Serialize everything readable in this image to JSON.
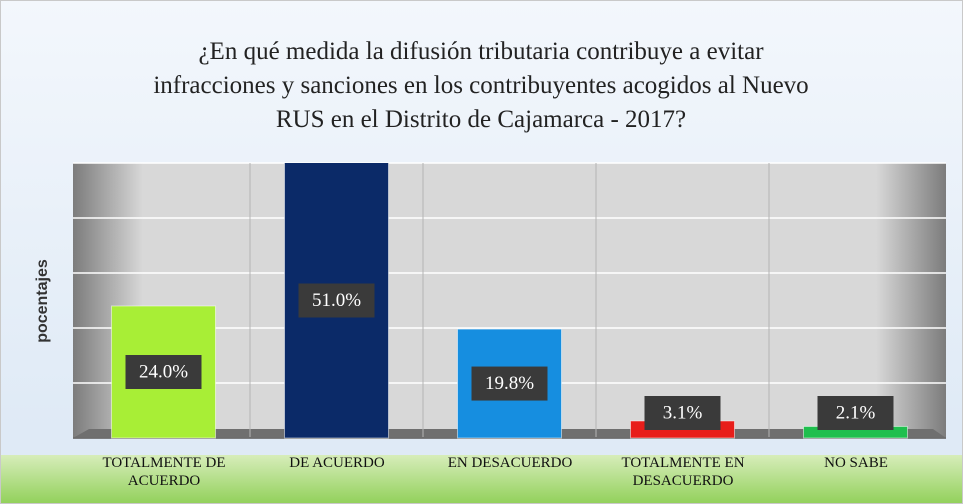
{
  "chart_data": {
    "type": "bar",
    "title": "¿En qué medida la difusión tributaria contribuye a evitar infracciones y sanciones en los contribuyentes acogidos al Nuevo RUS en el Distrito de Cajamarca - 2017?",
    "ylabel": "pocentajes",
    "categories": [
      "TOTALMENTE DE ACUERDO",
      "DE ACUERDO",
      "EN DESACUERDO",
      "TOTALMENTE EN DESACUERDO",
      "NO SABE"
    ],
    "values": [
      24.0,
      51.0,
      19.8,
      3.1,
      2.1
    ],
    "value_labels": [
      "24.0%",
      "51.0%",
      "19.8%",
      "3.1%",
      "2.1%"
    ],
    "colors": [
      "#a8ee36",
      "#0b2a68",
      "#168ee0",
      "#e81e1a",
      "#1fbf4e"
    ],
    "ylim": [
      0,
      50
    ],
    "yticks": [
      0,
      10,
      20,
      30,
      40,
      50
    ],
    "grid": true
  }
}
